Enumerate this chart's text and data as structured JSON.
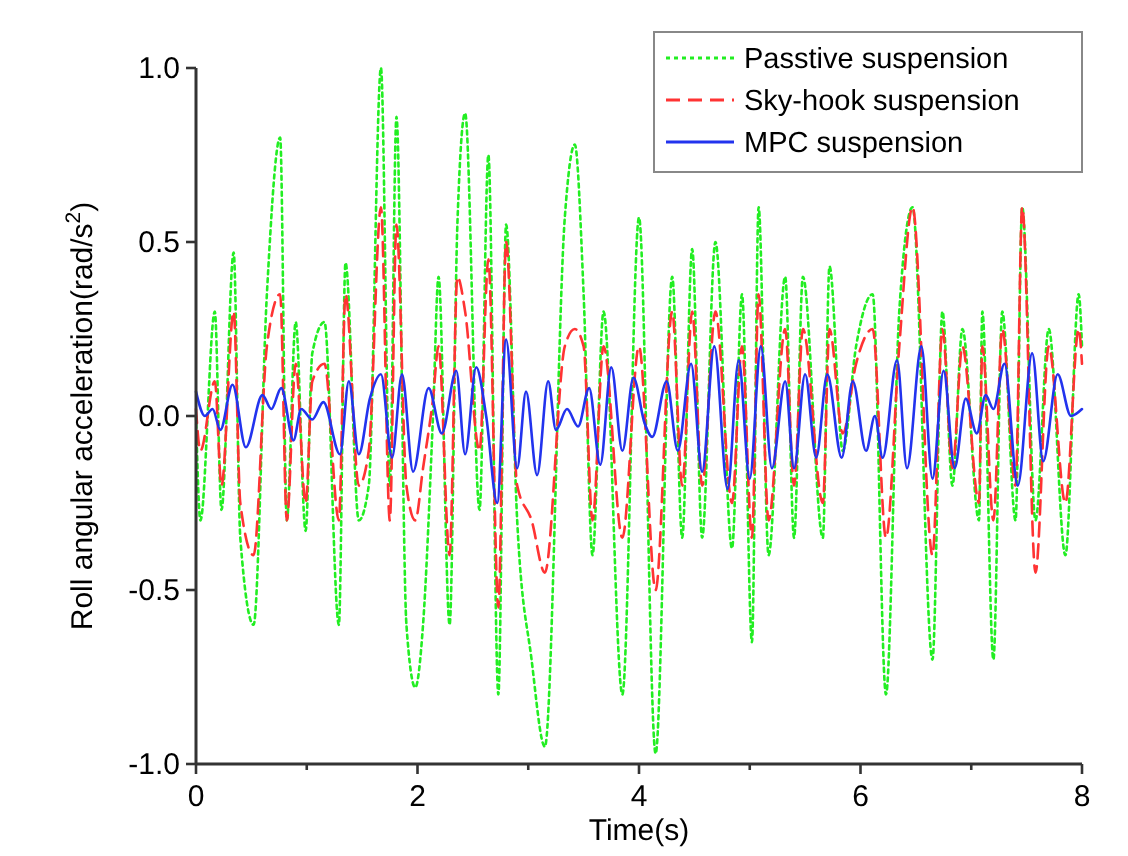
{
  "chart_data": {
    "type": "line",
    "xlabel": "Time(s)",
    "ylabel": "Roll angular acceleration(rad/s$^{2}$)",
    "xlim": [
      0,
      8
    ],
    "xticks": [
      0,
      {
        "value": 1,
        "label": null
      },
      2,
      {
        "value": 3,
        "label": null
      },
      4,
      {
        "value": 5,
        "label": null
      },
      6,
      {
        "value": 7,
        "label": null
      },
      8
    ],
    "ylim": [
      -1,
      1
    ],
    "yticks": [
      {
        "value": -1,
        "label": "-1.0"
      },
      {
        "value": -0.5,
        "label": "-0.5"
      },
      {
        "value": 0,
        "label": "0.0"
      },
      {
        "value": 0.5,
        "label": "0.5"
      },
      {
        "value": 1,
        "label": "1.0"
      }
    ],
    "grid": false,
    "legend": "top right",
    "series": [
      {
        "name": "Passtive suspension",
        "color": "#22ee22",
        "line_style": "dotted",
        "x": [
          0,
          0.04,
          0.17,
          0.23,
          0.34,
          0.4,
          0.52,
          0.64,
          0.76,
          0.82,
          0.9,
          0.99,
          1.05,
          1.16,
          1.29,
          1.35,
          1.47,
          1.56,
          1.67,
          1.75,
          1.81,
          1.9,
          1.98,
          2.05,
          2.14,
          2.19,
          2.29,
          2.36,
          2.43,
          2.56,
          2.64,
          2.73,
          2.8,
          2.9,
          3.03,
          3.15,
          3.33,
          3.42,
          3.5,
          3.58,
          3.68,
          3.85,
          4.0,
          4.15,
          4.3,
          4.39,
          4.48,
          4.57,
          4.69,
          4.84,
          4.93,
          5.02,
          5.08,
          5.17,
          5.32,
          5.4,
          5.48,
          5.66,
          5.72,
          5.84,
          5.96,
          6.11,
          6.23,
          6.35,
          6.47,
          6.65,
          6.74,
          6.83,
          6.92,
          7.07,
          7.1,
          7.2,
          7.28,
          7.4,
          7.46,
          7.58,
          7.7,
          7.85,
          7.97,
          8.0
        ],
        "values": [
          0.0,
          -0.3,
          0.3,
          -0.27,
          0.47,
          -0.35,
          -0.6,
          0.35,
          0.8,
          -0.3,
          0.27,
          -0.33,
          0.18,
          0.27,
          -0.6,
          0.44,
          -0.3,
          -0.2,
          1.0,
          -0.2,
          0.86,
          -0.6,
          -0.78,
          -0.6,
          0.0,
          0.4,
          -0.6,
          0.55,
          0.87,
          -0.27,
          0.75,
          -0.8,
          0.55,
          -0.3,
          -0.7,
          -0.95,
          0.57,
          0.78,
          0.35,
          -0.4,
          0.3,
          -0.8,
          0.57,
          -0.97,
          0.4,
          -0.35,
          0.48,
          -0.35,
          0.5,
          -0.38,
          0.35,
          -0.65,
          0.6,
          -0.4,
          0.4,
          -0.35,
          0.4,
          -0.35,
          0.43,
          -0.1,
          0.2,
          0.35,
          -0.8,
          0.3,
          0.6,
          -0.7,
          0.3,
          -0.2,
          0.25,
          -0.3,
          0.3,
          -0.7,
          0.3,
          -0.3,
          0.6,
          -0.3,
          0.25,
          -0.4,
          0.35,
          0.2
        ]
      },
      {
        "name": "Sky-hook suspension",
        "color": "#ff3333",
        "line_style": "dashed",
        "x": [
          0,
          0.04,
          0.17,
          0.23,
          0.34,
          0.4,
          0.52,
          0.64,
          0.76,
          0.82,
          0.9,
          0.99,
          1.05,
          1.16,
          1.29,
          1.35,
          1.47,
          1.56,
          1.67,
          1.75,
          1.81,
          1.9,
          1.98,
          2.05,
          2.14,
          2.19,
          2.29,
          2.36,
          2.43,
          2.56,
          2.64,
          2.73,
          2.8,
          2.9,
          3.03,
          3.15,
          3.33,
          3.42,
          3.5,
          3.58,
          3.68,
          3.85,
          4.0,
          4.15,
          4.3,
          4.39,
          4.48,
          4.57,
          4.69,
          4.84,
          4.93,
          5.02,
          5.08,
          5.17,
          5.32,
          5.4,
          5.48,
          5.66,
          5.72,
          5.84,
          5.96,
          6.11,
          6.23,
          6.35,
          6.47,
          6.65,
          6.74,
          6.83,
          6.92,
          7.07,
          7.1,
          7.2,
          7.28,
          7.4,
          7.46,
          7.58,
          7.7,
          7.85,
          7.97,
          8.0
        ],
        "values": [
          0.02,
          -0.1,
          0.1,
          -0.2,
          0.3,
          -0.25,
          -0.4,
          0.2,
          0.35,
          -0.3,
          0.15,
          -0.25,
          0.1,
          0.15,
          -0.3,
          0.35,
          -0.2,
          -0.1,
          0.6,
          -0.3,
          0.55,
          -0.2,
          -0.3,
          -0.15,
          0.05,
          0.2,
          -0.4,
          0.4,
          0.3,
          -0.1,
          0.45,
          -0.55,
          0.5,
          -0.2,
          -0.3,
          -0.45,
          0.2,
          0.25,
          0.2,
          -0.3,
          0.2,
          -0.35,
          0.2,
          -0.5,
          0.3,
          -0.2,
          0.3,
          -0.2,
          0.3,
          -0.25,
          0.2,
          -0.35,
          0.35,
          -0.3,
          0.25,
          -0.2,
          0.25,
          -0.25,
          0.25,
          -0.05,
          0.15,
          0.25,
          -0.35,
          0.2,
          0.6,
          -0.4,
          0.25,
          -0.15,
          0.2,
          -0.25,
          0.2,
          -0.3,
          0.25,
          -0.2,
          0.6,
          -0.45,
          0.2,
          -0.25,
          0.25,
          0.15
        ]
      },
      {
        "name": "MPC suspension",
        "color": "#2233ee",
        "line_style": "solid",
        "x": [
          0,
          0.08,
          0.15,
          0.22,
          0.33,
          0.45,
          0.6,
          0.68,
          0.77,
          0.88,
          0.95,
          1.05,
          1.15,
          1.3,
          1.38,
          1.47,
          1.57,
          1.67,
          1.77,
          1.86,
          1.96,
          2.1,
          2.22,
          2.35,
          2.43,
          2.53,
          2.62,
          2.72,
          2.8,
          2.9,
          2.98,
          3.08,
          3.18,
          3.25,
          3.35,
          3.45,
          3.55,
          3.65,
          3.75,
          3.85,
          3.95,
          4.05,
          4.12,
          4.25,
          4.35,
          4.47,
          4.57,
          4.68,
          4.8,
          4.9,
          5.0,
          5.1,
          5.2,
          5.32,
          5.4,
          5.5,
          5.6,
          5.7,
          5.83,
          5.93,
          6.05,
          6.13,
          6.2,
          6.33,
          6.42,
          6.55,
          6.65,
          6.75,
          6.85,
          6.95,
          7.05,
          7.13,
          7.2,
          7.3,
          7.42,
          7.55,
          7.65,
          7.78,
          7.9,
          8.0
        ],
        "values": [
          0.07,
          0.0,
          0.02,
          -0.04,
          0.09,
          -0.09,
          0.06,
          0.02,
          0.08,
          -0.07,
          0.02,
          -0.01,
          0.04,
          -0.11,
          0.1,
          -0.11,
          0.05,
          0.12,
          -0.12,
          0.12,
          -0.16,
          0.08,
          -0.05,
          0.13,
          -0.11,
          0.14,
          0.0,
          -0.25,
          0.22,
          -0.15,
          0.07,
          -0.17,
          0.1,
          -0.04,
          0.02,
          -0.03,
          0.08,
          -0.14,
          0.14,
          -0.1,
          0.11,
          -0.02,
          -0.06,
          0.1,
          -0.1,
          0.15,
          -0.16,
          0.2,
          -0.21,
          0.16,
          -0.18,
          0.2,
          -0.15,
          0.1,
          -0.15,
          0.12,
          -0.12,
          0.12,
          -0.12,
          0.1,
          -0.1,
          0.0,
          -0.12,
          0.16,
          -0.15,
          0.2,
          -0.18,
          0.13,
          -0.15,
          0.05,
          -0.05,
          0.06,
          0.02,
          0.15,
          -0.2,
          0.18,
          -0.13,
          0.12,
          0.0,
          0.02
        ]
      }
    ]
  }
}
